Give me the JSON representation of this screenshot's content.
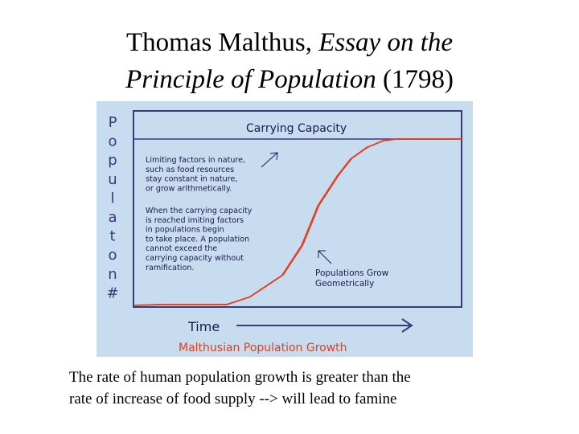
{
  "slide": {
    "title_part1": "Thomas Malthus, ",
    "title_italic1": "Essay on the",
    "title_italic2": "Principle of Population",
    "title_part2": " (1798)",
    "caption_line1": "The rate of human population growth is greater than the",
    "caption_line2": "rate of increase of food supply --> will lead to famine"
  },
  "colors": {
    "panel_bg": "#c8dcf0",
    "frame": "#3a3a7a",
    "curve": "#e0401e",
    "dark_text": "#1a1a4a",
    "accent_text": "#e0401e",
    "page_bg": "#ffffff"
  },
  "chart_data": {
    "type": "line",
    "title": "Malthusian Population Growth",
    "xlabel": "Time",
    "ylabel_letters": [
      "P",
      "o",
      "p",
      "u",
      "l",
      "a",
      "t",
      "o",
      "n",
      "#"
    ],
    "xlim": [
      0,
      100
    ],
    "ylim": [
      0,
      100
    ],
    "grid": false,
    "carrying_capacity": {
      "label": "Carrying Capacity",
      "value": 100
    },
    "series": [
      {
        "values_x": [
          0,
          8,
          28,
          35,
          45,
          51,
          56,
          62,
          66,
          71,
          76,
          80,
          86,
          100
        ],
        "values_y": [
          0,
          0.5,
          0.5,
          5,
          18,
          36,
          60,
          78,
          88,
          95,
          99,
          100,
          100,
          100
        ]
      }
    ],
    "annotations": [
      {
        "lines": [
          "Limiting factors in nature,",
          "such as food resources",
          "stay constant in nature,",
          "or grow arithmetically."
        ]
      },
      {
        "lines": [
          "When the carrying capacity",
          "is reached imiting factors",
          "in populations begin",
          "to take place. A population",
          "cannot exceed the",
          "carrying  capacity without",
          "ramification."
        ]
      },
      {
        "lines": [
          "Populations Grow",
          "Geometrically"
        ]
      }
    ]
  }
}
